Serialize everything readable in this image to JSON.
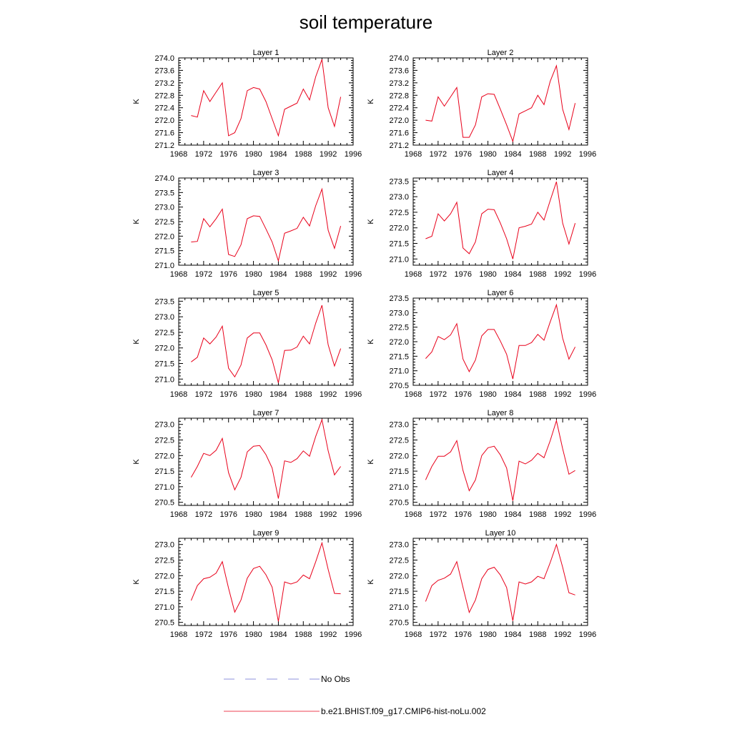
{
  "title": "soil temperature",
  "legend": [
    {
      "label": "No Obs",
      "color": "#6a6fd1",
      "dash": true
    },
    {
      "label": "b.e21.BHIST.f09_g17.CMIP6-hist-noLu.002",
      "color": "#e8001a",
      "dash": false
    }
  ],
  "chart_data": [
    {
      "type": "line",
      "title": "Layer 1",
      "ylabel": "K",
      "xlim": [
        1968,
        1996
      ],
      "xticks": [
        1968,
        1972,
        1976,
        1980,
        1984,
        1988,
        1992,
        1996
      ],
      "ylim": [
        271.2,
        274.0
      ],
      "yticks": [
        "271.2",
        "271.6",
        "272.0",
        "272.4",
        "272.8",
        "273.2",
        "273.6",
        "274.0"
      ],
      "x": [
        1970,
        1971,
        1972,
        1973,
        1974,
        1975,
        1976,
        1977,
        1978,
        1979,
        1980,
        1981,
        1982,
        1983,
        1984,
        1985,
        1986,
        1987,
        1988,
        1989,
        1990,
        1991,
        1992,
        1993,
        1994
      ],
      "series": [
        {
          "name": "b.e21.BHIST.f09_g17.CMIP6-hist-noLu.002",
          "values": [
            272.15,
            272.1,
            272.95,
            272.6,
            272.9,
            273.2,
            271.5,
            271.6,
            272.05,
            272.95,
            273.05,
            273.0,
            272.6,
            272.05,
            271.5,
            272.35,
            272.45,
            272.55,
            273.0,
            272.65,
            273.4,
            273.95,
            272.4,
            271.8,
            272.75
          ]
        }
      ]
    },
    {
      "type": "line",
      "title": "Layer 2",
      "ylabel": "K",
      "xlim": [
        1968,
        1996
      ],
      "xticks": [
        1968,
        1972,
        1976,
        1980,
        1984,
        1988,
        1992,
        1996
      ],
      "ylim": [
        271.2,
        274.0
      ],
      "yticks": [
        "271.2",
        "271.6",
        "272.0",
        "272.4",
        "272.8",
        "273.2",
        "273.6",
        "274.0"
      ],
      "x": [
        1970,
        1971,
        1972,
        1973,
        1974,
        1975,
        1976,
        1977,
        1978,
        1979,
        1980,
        1981,
        1982,
        1983,
        1984,
        1985,
        1986,
        1987,
        1988,
        1989,
        1990,
        1991,
        1992,
        1993,
        1994
      ],
      "series": [
        {
          "name": "b.e21.BHIST.f09_g17.CMIP6-hist-noLu.002",
          "values": [
            272.0,
            271.97,
            272.75,
            272.45,
            272.75,
            273.05,
            271.45,
            271.45,
            271.85,
            272.75,
            272.85,
            272.83,
            272.35,
            271.85,
            271.32,
            272.2,
            272.3,
            272.4,
            272.8,
            272.5,
            273.25,
            273.75,
            272.35,
            271.7,
            272.55
          ]
        }
      ]
    },
    {
      "type": "line",
      "title": "Layer 3",
      "ylabel": "K",
      "xlim": [
        1968,
        1996
      ],
      "xticks": [
        1968,
        1972,
        1976,
        1980,
        1984,
        1988,
        1992,
        1996
      ],
      "ylim": [
        271.0,
        274.0
      ],
      "yticks": [
        "271.0",
        "271.5",
        "272.0",
        "272.5",
        "273.0",
        "273.5",
        "274.0"
      ],
      "x": [
        1970,
        1971,
        1972,
        1973,
        1974,
        1975,
        1976,
        1977,
        1978,
        1979,
        1980,
        1981,
        1982,
        1983,
        1984,
        1985,
        1986,
        1987,
        1988,
        1989,
        1990,
        1991,
        1992,
        1993,
        1994
      ],
      "series": [
        {
          "name": "b.e21.BHIST.f09_g17.CMIP6-hist-noLu.002",
          "values": [
            271.8,
            271.82,
            272.6,
            272.32,
            272.6,
            272.93,
            271.37,
            271.3,
            271.7,
            272.6,
            272.7,
            272.68,
            272.25,
            271.8,
            271.15,
            272.1,
            272.18,
            272.27,
            272.65,
            272.35,
            273.05,
            273.62,
            272.2,
            271.58,
            272.35
          ]
        }
      ]
    },
    {
      "type": "line",
      "title": "Layer 4",
      "ylabel": "K",
      "xlim": [
        1968,
        1996
      ],
      "xticks": [
        1968,
        1972,
        1976,
        1980,
        1984,
        1988,
        1992,
        1996
      ],
      "ylim": [
        270.8,
        273.6
      ],
      "yticks": [
        "271.0",
        "271.5",
        "272.0",
        "272.5",
        "273.0",
        "273.5"
      ],
      "x": [
        1970,
        1971,
        1972,
        1973,
        1974,
        1975,
        1976,
        1977,
        1978,
        1979,
        1980,
        1981,
        1982,
        1983,
        1984,
        1985,
        1986,
        1987,
        1988,
        1989,
        1990,
        1991,
        1992,
        1993,
        1994
      ],
      "series": [
        {
          "name": "b.e21.BHIST.f09_g17.CMIP6-hist-noLu.002",
          "values": [
            271.65,
            271.73,
            272.45,
            272.22,
            272.45,
            272.82,
            271.35,
            271.17,
            271.55,
            272.45,
            272.6,
            272.58,
            272.15,
            271.65,
            271.0,
            272.0,
            272.05,
            272.12,
            272.5,
            272.25,
            272.88,
            273.48,
            272.15,
            271.48,
            272.15
          ]
        }
      ]
    },
    {
      "type": "line",
      "title": "Layer 5",
      "ylabel": "K",
      "xlim": [
        1968,
        1996
      ],
      "xticks": [
        1968,
        1972,
        1976,
        1980,
        1984,
        1988,
        1992,
        1996
      ],
      "ylim": [
        270.8,
        273.6
      ],
      "yticks": [
        "271.0",
        "271.5",
        "272.0",
        "272.5",
        "273.0",
        "273.5"
      ],
      "x": [
        1970,
        1971,
        1972,
        1973,
        1974,
        1975,
        1976,
        1977,
        1978,
        1979,
        1980,
        1981,
        1982,
        1983,
        1984,
        1985,
        1986,
        1987,
        1988,
        1989,
        1990,
        1991,
        1992,
        1993,
        1994
      ],
      "series": [
        {
          "name": "b.e21.BHIST.f09_g17.CMIP6-hist-noLu.002",
          "values": [
            271.55,
            271.7,
            272.32,
            272.13,
            272.35,
            272.7,
            271.35,
            271.07,
            271.45,
            272.32,
            272.48,
            272.48,
            272.1,
            271.62,
            270.88,
            271.92,
            271.93,
            272.03,
            272.38,
            272.13,
            272.8,
            273.37,
            272.1,
            271.42,
            271.98
          ]
        }
      ]
    },
    {
      "type": "line",
      "title": "Layer 6",
      "ylabel": "K",
      "xlim": [
        1968,
        1996
      ],
      "xticks": [
        1968,
        1972,
        1976,
        1980,
        1984,
        1988,
        1992,
        1996
      ],
      "ylim": [
        270.5,
        273.5
      ],
      "yticks": [
        "270.5",
        "271.0",
        "271.5",
        "272.0",
        "272.5",
        "273.0",
        "273.5"
      ],
      "x": [
        1970,
        1971,
        1972,
        1973,
        1974,
        1975,
        1976,
        1977,
        1978,
        1979,
        1980,
        1981,
        1982,
        1983,
        1984,
        1985,
        1986,
        1987,
        1988,
        1989,
        1990,
        1991,
        1992,
        1993,
        1994
      ],
      "series": [
        {
          "name": "b.e21.BHIST.f09_g17.CMIP6-hist-noLu.002",
          "values": [
            271.42,
            271.65,
            272.18,
            272.07,
            272.23,
            272.62,
            271.4,
            270.97,
            271.37,
            272.2,
            272.42,
            272.42,
            272.02,
            271.57,
            270.72,
            271.87,
            271.87,
            271.97,
            272.25,
            272.05,
            272.68,
            273.27,
            272.12,
            271.4,
            271.82
          ]
        }
      ]
    },
    {
      "type": "line",
      "title": "Layer 7",
      "ylabel": "K",
      "xlim": [
        1968,
        1996
      ],
      "xticks": [
        1968,
        1972,
        1976,
        1980,
        1984,
        1988,
        1992,
        1996
      ],
      "ylim": [
        270.4,
        273.2
      ],
      "yticks": [
        "270.5",
        "271.0",
        "271.5",
        "272.0",
        "272.5",
        "273.0"
      ],
      "x": [
        1970,
        1971,
        1972,
        1973,
        1974,
        1975,
        1976,
        1977,
        1978,
        1979,
        1980,
        1981,
        1982,
        1983,
        1984,
        1985,
        1986,
        1987,
        1988,
        1989,
        1990,
        1991,
        1992,
        1993,
        1994
      ],
      "series": [
        {
          "name": "b.e21.BHIST.f09_g17.CMIP6-hist-noLu.002",
          "values": [
            271.3,
            271.65,
            272.07,
            272.0,
            272.17,
            272.55,
            271.45,
            270.9,
            271.3,
            272.12,
            272.3,
            272.32,
            272.03,
            271.6,
            270.62,
            271.83,
            271.78,
            271.9,
            272.15,
            271.98,
            272.62,
            273.15,
            272.15,
            271.38,
            271.65
          ]
        }
      ]
    },
    {
      "type": "line",
      "title": "Layer 8",
      "ylabel": "K",
      "xlim": [
        1968,
        1996
      ],
      "xticks": [
        1968,
        1972,
        1976,
        1980,
        1984,
        1988,
        1992,
        1996
      ],
      "ylim": [
        270.4,
        273.2
      ],
      "yticks": [
        "270.5",
        "271.0",
        "271.5",
        "272.0",
        "272.5",
        "273.0"
      ],
      "x": [
        1970,
        1971,
        1972,
        1973,
        1974,
        1975,
        1976,
        1977,
        1978,
        1979,
        1980,
        1981,
        1982,
        1983,
        1984,
        1985,
        1986,
        1987,
        1988,
        1989,
        1990,
        1991,
        1992,
        1993,
        1994
      ],
      "series": [
        {
          "name": "b.e21.BHIST.f09_g17.CMIP6-hist-noLu.002",
          "values": [
            271.22,
            271.65,
            271.98,
            271.98,
            272.12,
            272.48,
            271.52,
            270.87,
            271.22,
            272.0,
            272.25,
            272.3,
            272.02,
            271.6,
            270.55,
            271.82,
            271.73,
            271.85,
            272.07,
            271.93,
            272.48,
            273.12,
            272.22,
            271.4,
            271.52
          ]
        }
      ]
    },
    {
      "type": "line",
      "title": "Layer 9",
      "ylabel": "K",
      "xlim": [
        1968,
        1996
      ],
      "xticks": [
        1968,
        1972,
        1976,
        1980,
        1984,
        1988,
        1992,
        1996
      ],
      "ylim": [
        270.4,
        273.2
      ],
      "yticks": [
        "270.5",
        "271.0",
        "271.5",
        "272.0",
        "272.5",
        "273.0"
      ],
      "x": [
        1970,
        1971,
        1972,
        1973,
        1974,
        1975,
        1976,
        1977,
        1978,
        1979,
        1980,
        1981,
        1982,
        1983,
        1984,
        1985,
        1986,
        1987,
        1988,
        1989,
        1990,
        1991,
        1992,
        1993,
        1994
      ],
      "series": [
        {
          "name": "b.e21.BHIST.f09_g17.CMIP6-hist-noLu.002",
          "values": [
            271.2,
            271.68,
            271.9,
            271.95,
            272.08,
            272.45,
            271.6,
            270.83,
            271.22,
            271.92,
            272.23,
            272.3,
            272.03,
            271.63,
            270.53,
            271.8,
            271.73,
            271.8,
            272.02,
            271.9,
            272.45,
            273.05,
            272.2,
            271.43,
            271.42
          ]
        }
      ]
    },
    {
      "type": "line",
      "title": "Layer 10",
      "ylabel": "K",
      "xlim": [
        1968,
        1996
      ],
      "xticks": [
        1968,
        1972,
        1976,
        1980,
        1984,
        1988,
        1992,
        1996
      ],
      "ylim": [
        270.4,
        273.2
      ],
      "yticks": [
        "270.5",
        "271.0",
        "271.5",
        "272.0",
        "272.5",
        "273.0"
      ],
      "x": [
        1970,
        1971,
        1972,
        1973,
        1974,
        1975,
        1976,
        1977,
        1978,
        1979,
        1980,
        1981,
        1982,
        1983,
        1984,
        1985,
        1986,
        1987,
        1988,
        1989,
        1990,
        1991,
        1992,
        1993,
        1994
      ],
      "series": [
        {
          "name": "b.e21.BHIST.f09_g17.CMIP6-hist-noLu.002",
          "values": [
            271.17,
            271.68,
            271.85,
            271.92,
            272.05,
            272.45,
            271.62,
            270.82,
            271.22,
            271.9,
            272.2,
            272.27,
            272.02,
            271.62,
            270.55,
            271.8,
            271.73,
            271.8,
            271.98,
            271.9,
            272.42,
            273.0,
            272.27,
            271.45,
            271.38
          ]
        }
      ]
    }
  ]
}
